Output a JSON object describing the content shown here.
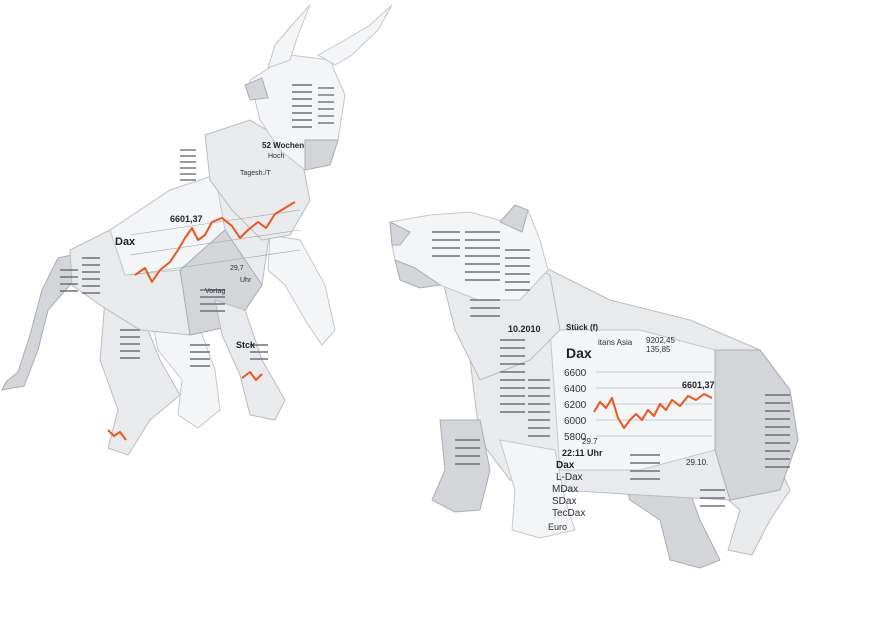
{
  "scene": {
    "accent_color": "#e9571f"
  },
  "bull": {
    "index_label": "Dax",
    "value_label": "6601,37",
    "table_header": "52 Wochen",
    "table_sub": "Hoch",
    "table_sub2": "Tagesh./T",
    "time_label": "Uhr",
    "tick_label": "29,7",
    "stock_label": "Stck",
    "vortag_label": "Vortag"
  },
  "bear": {
    "index_label": "Dax",
    "axis_ticks": [
      "6600",
      "6400",
      "6200",
      "6000",
      "5800"
    ],
    "value_label": "6601,37",
    "low_label": "29.7",
    "time_label": "22:11 Uhr",
    "end_date": "29.10.",
    "date_label": "10.2010",
    "stock_label": "Stück (f)",
    "region_label": "itans Asia",
    "region_value1": "9202,45",
    "region_value2": "135,85",
    "list_items": [
      "Dax",
      "L-Dax",
      "MDax",
      "SDax",
      "TecDax"
    ],
    "euro_label": "Euro"
  }
}
